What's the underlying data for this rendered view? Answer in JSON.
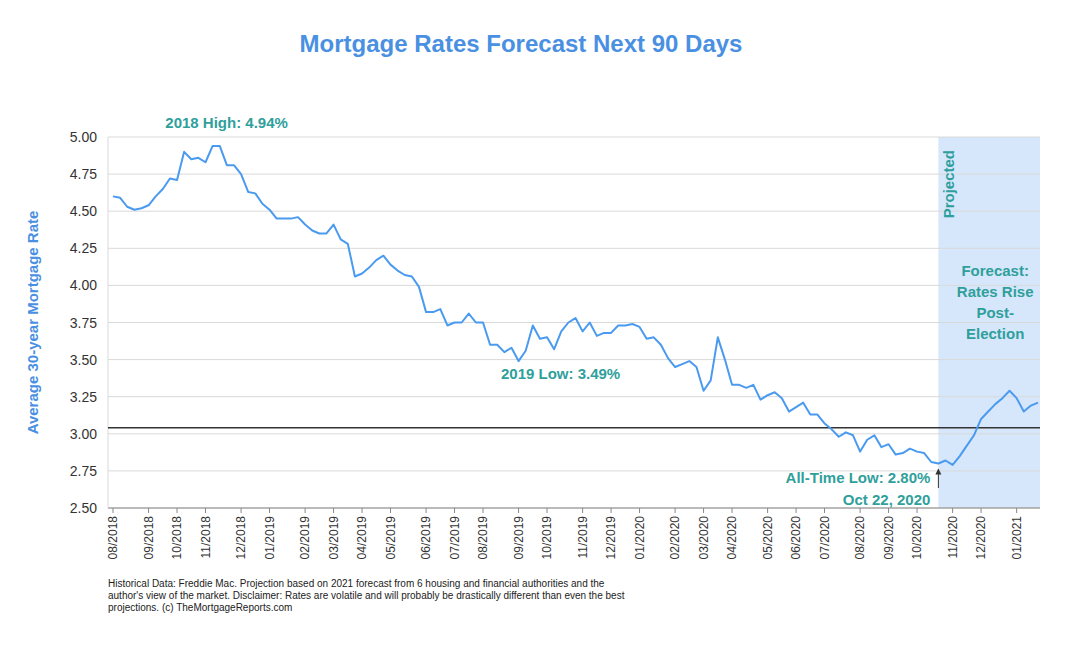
{
  "chart_data": {
    "type": "line",
    "title": "Mortgage Rates Forecast Next 90 Days",
    "y_label": "Average 30-year Mortgage Rate",
    "color": "#4a9af0",
    "grid": true,
    "ylim": [
      2.5,
      5
    ],
    "yticks": [
      {
        "value": 2.5,
        "label": "2.50"
      },
      2.75,
      {
        "value": 3,
        "label": "3.00"
      },
      3.25,
      {
        "value": 3.5,
        "label": "3.50"
      },
      3.75,
      {
        "value": 4,
        "label": "4.00"
      },
      4.25,
      {
        "value": 4.5,
        "label": "4.50"
      },
      4.75,
      {
        "value": 5,
        "label": "5.00"
      }
    ],
    "reference_line": 3.04,
    "categories": [
      "08/2018",
      null,
      null,
      null,
      null,
      "09/2018",
      null,
      null,
      null,
      "10/2018",
      null,
      null,
      null,
      "11/2018",
      null,
      null,
      null,
      null,
      "12/2018",
      null,
      null,
      null,
      "01/2019",
      null,
      null,
      null,
      null,
      "02/2019",
      null,
      null,
      null,
      "03/2019",
      null,
      null,
      null,
      "04/2019",
      null,
      null,
      null,
      "05/2019",
      null,
      null,
      null,
      null,
      "06/2019",
      null,
      null,
      null,
      "07/2019",
      null,
      null,
      null,
      "08/2019",
      null,
      null,
      null,
      null,
      "09/2019",
      null,
      null,
      null,
      "10/2019",
      null,
      null,
      null,
      null,
      "11/2019",
      null,
      null,
      null,
      "12/2019",
      null,
      null,
      null,
      "01/2020",
      null,
      null,
      null,
      null,
      "02/2020",
      null,
      null,
      null,
      "03/2020",
      null,
      null,
      null,
      "04/2020",
      null,
      null,
      null,
      null,
      "05/2020",
      null,
      null,
      null,
      "06/2020",
      null,
      null,
      null,
      "07/2020",
      null,
      null,
      null,
      null,
      "08/2020",
      null,
      null,
      null,
      "09/2020",
      null,
      null,
      null,
      "10/2020",
      null,
      null,
      null,
      null,
      "11/2020",
      null,
      null,
      null,
      "12/2020",
      null,
      null,
      null,
      null,
      "01/2021",
      null,
      null,
      null
    ],
    "values": [
      4.6,
      4.59,
      4.53,
      4.51,
      4.52,
      4.54,
      4.6,
      4.65,
      4.72,
      4.71,
      4.9,
      4.85,
      4.86,
      4.83,
      4.94,
      4.94,
      4.81,
      4.81,
      4.75,
      4.63,
      4.62,
      4.55,
      4.51,
      4.45,
      4.45,
      4.45,
      4.46,
      4.41,
      4.37,
      4.35,
      4.35,
      4.41,
      4.31,
      4.28,
      4.06,
      4.08,
      4.12,
      4.17,
      4.2,
      4.14,
      4.1,
      4.07,
      4.06,
      3.99,
      3.82,
      3.82,
      3.84,
      3.73,
      3.75,
      3.75,
      3.81,
      3.75,
      3.75,
      3.6,
      3.6,
      3.55,
      3.58,
      3.49,
      3.56,
      3.73,
      3.64,
      3.65,
      3.57,
      3.69,
      3.75,
      3.78,
      3.69,
      3.75,
      3.66,
      3.68,
      3.68,
      3.73,
      3.73,
      3.74,
      3.72,
      3.64,
      3.65,
      3.6,
      3.51,
      3.45,
      3.47,
      3.49,
      3.45,
      3.29,
      3.36,
      3.65,
      3.5,
      3.33,
      3.33,
      3.31,
      3.33,
      3.23,
      3.26,
      3.28,
      3.24,
      3.15,
      3.18,
      3.21,
      3.13,
      3.13,
      3.07,
      3.03,
      2.98,
      3.01,
      2.99,
      2.88,
      2.96,
      2.99,
      2.91,
      2.93,
      2.86,
      2.87,
      2.9,
      2.88,
      2.87,
      2.81,
      2.8,
      2.82,
      2.79,
      2.85,
      2.92,
      2.99,
      3.1,
      3.15,
      3.2,
      3.24,
      3.29,
      3.24,
      3.15,
      3.19,
      3.21
    ],
    "bands": [
      {
        "label": "Projected",
        "from": 116,
        "text": [
          "Forecast:",
          "Rates Rise",
          "Post-",
          "Election"
        ]
      }
    ],
    "annotations": [
      {
        "text": [
          "2018 High: 4.94%"
        ],
        "index": 14
      },
      {
        "text": [
          "2019 Low: 3.49%"
        ],
        "index": 57
      },
      {
        "text": [
          "All-Time Low: 2.80%",
          "Oct 22, 2020"
        ],
        "index": 116
      }
    ],
    "footnote": [
      "Historical Data: Freddie Mac.  Projection based on 2021 forecast from 6 housing and financial authorities and the",
      "author's view of the market. Disclaimer: Rates are volatile and will probably be drastically different than even the best",
      "projections. (c) TheMortgageReports.com"
    ]
  }
}
